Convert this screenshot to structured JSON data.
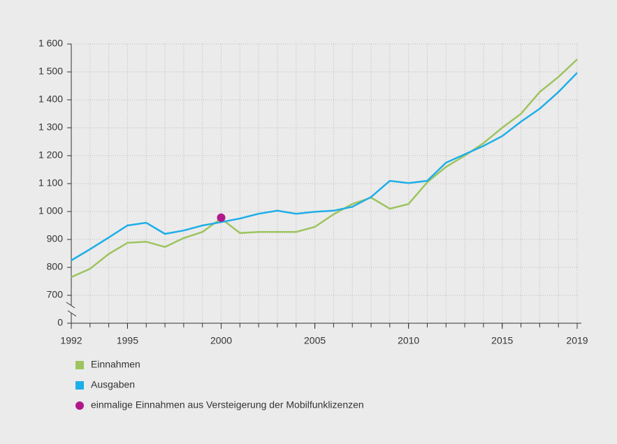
{
  "chart_data": {
    "type": "line",
    "x": [
      1992,
      1993,
      1994,
      1995,
      1996,
      1997,
      1998,
      1999,
      2000,
      2001,
      2002,
      2003,
      2004,
      2005,
      2006,
      2007,
      2008,
      2009,
      2010,
      2011,
      2012,
      2013,
      2014,
      2015,
      2016,
      2017,
      2018,
      2019
    ],
    "series": [
      {
        "name": "Einnahmen",
        "color": "#9dc45f",
        "values": [
          765,
          795,
          848,
          888,
          892,
          873,
          905,
          927,
          975,
          923,
          927,
          927,
          927,
          945,
          990,
          1027,
          1050,
          1010,
          1027,
          1105,
          1160,
          1200,
          1245,
          1300,
          1350,
          1428,
          1482,
          1545
        ]
      },
      {
        "name": "Ausgaben",
        "color": "#1eaee8",
        "values": [
          825,
          865,
          907,
          950,
          960,
          920,
          932,
          950,
          962,
          975,
          992,
          1003,
          992,
          999,
          1003,
          1017,
          1052,
          1110,
          1102,
          1110,
          1175,
          1205,
          1235,
          1270,
          1322,
          1368,
          1428,
          1497
        ]
      }
    ],
    "markers": [
      {
        "name": "einmalige Einnahmen aus Versteigerung der Mobilfunklizenzen",
        "color": "#b0198a",
        "x": 2000,
        "y": 978
      }
    ],
    "xlim": [
      1992,
      2019
    ],
    "xticks": [
      1992,
      1995,
      2000,
      2005,
      2010,
      2015,
      2019
    ],
    "ylim": [
      0,
      1600
    ],
    "yticks": [
      0,
      700,
      800,
      900,
      {
        "value": 1000,
        "label": "1 000"
      },
      {
        "value": 1100,
        "label": "1 100"
      },
      {
        "value": 1200,
        "label": "1 200"
      },
      {
        "value": 1300,
        "label": "1 300"
      },
      {
        "value": 1400,
        "label": "1 400"
      },
      {
        "value": 1500,
        "label": "1 500"
      },
      {
        "value": 1600,
        "label": "1 600"
      }
    ],
    "y_axis_break": true,
    "grid": true,
    "legend": "bottom"
  }
}
